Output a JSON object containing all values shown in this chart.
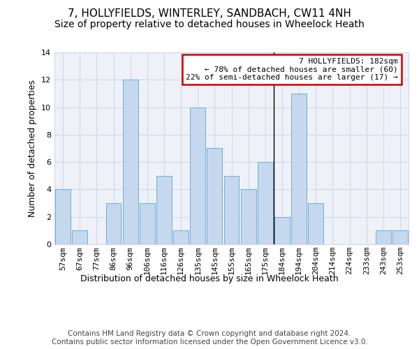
{
  "title": "7, HOLLYFIELDS, WINTERLEY, SANDBACH, CW11 4NH",
  "subtitle": "Size of property relative to detached houses in Wheelock Heath",
  "xlabel": "Distribution of detached houses by size in Wheelock Heath",
  "ylabel": "Number of detached properties",
  "categories": [
    "57sqm",
    "67sqm",
    "77sqm",
    "86sqm",
    "96sqm",
    "106sqm",
    "116sqm",
    "126sqm",
    "135sqm",
    "145sqm",
    "155sqm",
    "165sqm",
    "175sqm",
    "184sqm",
    "194sqm",
    "204sqm",
    "214sqm",
    "224sqm",
    "233sqm",
    "243sqm",
    "253sqm"
  ],
  "values": [
    4,
    1,
    0,
    3,
    12,
    3,
    5,
    1,
    10,
    7,
    5,
    4,
    6,
    2,
    11,
    3,
    0,
    0,
    0,
    1,
    1
  ],
  "bar_color": "#c5d8ed",
  "bar_edge_color": "#6aaed6",
  "highlight_index": 13,
  "vline_color": "#000000",
  "annotation_text": "7 HOLLYFIELDS: 182sqm\n← 78% of detached houses are smaller (60)\n22% of semi-detached houses are larger (17) →",
  "annotation_box_color": "#ffffff",
  "annotation_box_edge_color": "#cc0000",
  "ylim": [
    0,
    14
  ],
  "yticks": [
    0,
    2,
    4,
    6,
    8,
    10,
    12,
    14
  ],
  "grid_color": "#d0d8e8",
  "background_color": "#eef2f8",
  "footer": "Contains HM Land Registry data © Crown copyright and database right 2024.\nContains public sector information licensed under the Open Government Licence v3.0.",
  "title_fontsize": 11,
  "subtitle_fontsize": 10,
  "xlabel_fontsize": 9,
  "ylabel_fontsize": 9,
  "tick_fontsize": 8,
  "footer_fontsize": 7.5,
  "ann_fontsize": 8
}
